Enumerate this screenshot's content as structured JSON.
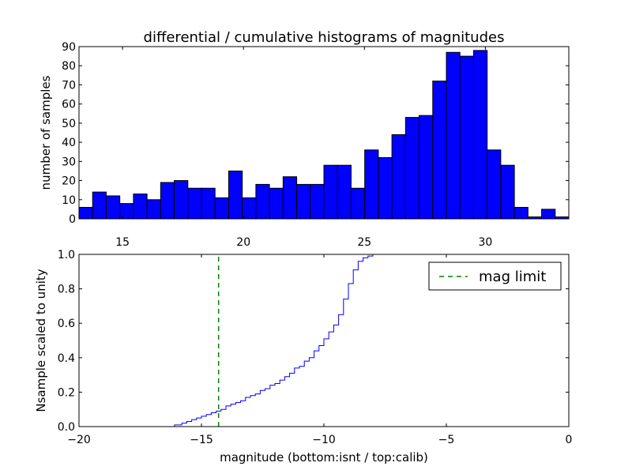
{
  "title": "differential / cumulative histograms of magnitudes",
  "chart_data": [
    {
      "type": "bar",
      "name": "top-histogram",
      "x_bin_start": 13.2,
      "bin_width": 0.5625,
      "values": [
        6,
        14,
        12,
        8,
        13,
        10,
        19,
        20,
        16,
        16,
        11,
        25,
        11,
        18,
        16,
        22,
        18,
        18,
        28,
        28,
        16,
        36,
        32,
        44,
        53,
        54,
        72,
        87,
        85,
        88,
        36,
        28,
        6,
        1,
        5,
        1
      ],
      "xlim": [
        13.2,
        33.45
      ],
      "ylim": [
        0,
        90
      ],
      "xticks": [
        "15",
        "20",
        "25",
        "30"
      ],
      "yticks": [
        "0",
        "10",
        "20",
        "30",
        "40",
        "50",
        "60",
        "70",
        "80",
        "90"
      ],
      "xlabel": "",
      "ylabel": "number of samples",
      "bar_color": "#0000ff",
      "edge_color": "#000000",
      "grid": false
    },
    {
      "type": "line",
      "name": "bottom-cumulative",
      "xlim": [
        -20,
        0
      ],
      "ylim": [
        0,
        1.0
      ],
      "xticks": [
        "−20",
        "−15",
        "−10",
        "−5",
        "0"
      ],
      "yticks": [
        "0.0",
        "0.2",
        "0.4",
        "0.6",
        "0.8",
        "1.0"
      ],
      "xlabel": "magnitude (bottom:isnt / top:calib)",
      "ylabel": "Nsample scaled to unity",
      "series": [
        {
          "color": "#0000ff",
          "step": true,
          "x": [
            -20,
            -16.1,
            -15.8,
            -15.6,
            -15.4,
            -15.2,
            -15.0,
            -14.8,
            -14.6,
            -14.4,
            -14.2,
            -14.0,
            -13.8,
            -13.6,
            -13.4,
            -13.2,
            -13.0,
            -12.8,
            -12.6,
            -12.4,
            -12.2,
            -12.0,
            -11.8,
            -11.6,
            -11.4,
            -11.2,
            -11.0,
            -10.8,
            -10.6,
            -10.4,
            -10.2,
            -10.0,
            -9.8,
            -9.6,
            -9.4,
            -9.2,
            -9.0,
            -8.8,
            -8.6,
            -8.4,
            -8.2,
            -8.0,
            -7.8,
            -7.6,
            -7.4,
            -0.05
          ],
          "y": [
            0.0,
            0.01,
            0.02,
            0.03,
            0.04,
            0.05,
            0.06,
            0.07,
            0.08,
            0.09,
            0.1,
            0.12,
            0.13,
            0.14,
            0.15,
            0.17,
            0.18,
            0.19,
            0.21,
            0.22,
            0.24,
            0.25,
            0.27,
            0.29,
            0.31,
            0.34,
            0.35,
            0.38,
            0.4,
            0.44,
            0.47,
            0.51,
            0.55,
            0.59,
            0.65,
            0.74,
            0.83,
            0.91,
            0.96,
            0.98,
            0.99,
            1.0,
            1.0,
            1.0,
            1.0,
            1.0
          ]
        },
        {
          "name": "mag limit",
          "color": "#008000",
          "dashed": true,
          "x": [
            -14.3,
            -14.3
          ],
          "y": [
            0,
            1.0
          ]
        }
      ],
      "legend": {
        "position": "top-right",
        "entries": [
          "mag limit"
        ]
      },
      "grid": false
    }
  ]
}
